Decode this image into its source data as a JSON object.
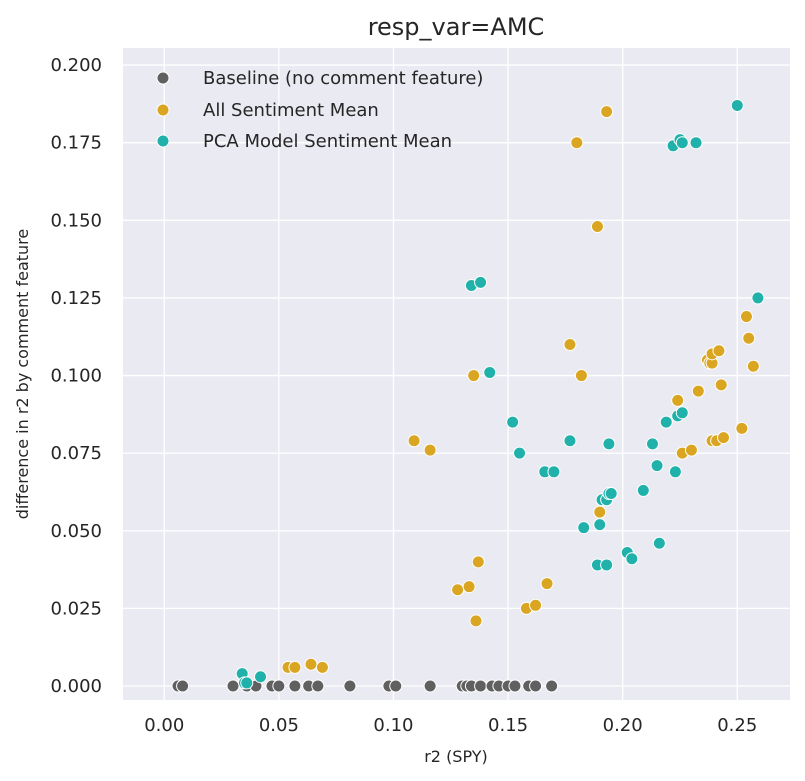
{
  "chart_data": {
    "type": "scatter",
    "title": "resp_var=AMC",
    "xlabel": "r2 (SPY)",
    "ylabel": "difference in r2 by comment feature",
    "xlim": [
      -0.018,
      0.273
    ],
    "ylim": [
      -0.0045,
      0.2055
    ],
    "xticks": [
      0.0,
      0.05,
      0.1,
      0.15,
      0.2,
      0.25
    ],
    "xtick_labels": [
      "0.00",
      "0.05",
      "0.10",
      "0.15",
      "0.20",
      "0.25"
    ],
    "yticks": [
      0.0,
      0.025,
      0.05,
      0.075,
      0.1,
      0.125,
      0.15,
      0.175,
      0.2
    ],
    "ytick_labels": [
      "0.000",
      "0.025",
      "0.050",
      "0.075",
      "0.100",
      "0.125",
      "0.150",
      "0.175",
      "0.200"
    ],
    "grid": true,
    "legend_position": "top-left",
    "background_color": "#eaeaf2",
    "series": [
      {
        "name": "Baseline (no comment feature)",
        "color": "#606060",
        "points": [
          [
            0.006,
            0.0
          ],
          [
            0.008,
            0.0
          ],
          [
            0.03,
            0.0
          ],
          [
            0.036,
            0.0
          ],
          [
            0.04,
            0.0
          ],
          [
            0.047,
            0.0
          ],
          [
            0.05,
            0.0
          ],
          [
            0.057,
            0.0
          ],
          [
            0.063,
            0.0
          ],
          [
            0.067,
            0.0
          ],
          [
            0.081,
            0.0
          ],
          [
            0.098,
            0.0
          ],
          [
            0.101,
            0.0
          ],
          [
            0.116,
            0.0
          ],
          [
            0.13,
            0.0
          ],
          [
            0.132,
            0.0
          ],
          [
            0.134,
            0.0
          ],
          [
            0.138,
            0.0
          ],
          [
            0.143,
            0.0
          ],
          [
            0.146,
            0.0
          ],
          [
            0.15,
            0.0
          ],
          [
            0.153,
            0.0
          ],
          [
            0.159,
            0.0
          ],
          [
            0.162,
            0.0
          ],
          [
            0.169,
            0.0
          ]
        ]
      },
      {
        "name": "All Sentiment Mean",
        "color": "#daa520",
        "points": [
          [
            0.054,
            0.006
          ],
          [
            0.057,
            0.006
          ],
          [
            0.064,
            0.007
          ],
          [
            0.069,
            0.006
          ],
          [
            0.109,
            0.079
          ],
          [
            0.116,
            0.076
          ],
          [
            0.128,
            0.031
          ],
          [
            0.133,
            0.032
          ],
          [
            0.135,
            0.1
          ],
          [
            0.136,
            0.021
          ],
          [
            0.137,
            0.04
          ],
          [
            0.158,
            0.025
          ],
          [
            0.162,
            0.026
          ],
          [
            0.167,
            0.033
          ],
          [
            0.177,
            0.11
          ],
          [
            0.18,
            0.175
          ],
          [
            0.182,
            0.1
          ],
          [
            0.189,
            0.148
          ],
          [
            0.19,
            0.056
          ],
          [
            0.193,
            0.185
          ],
          [
            0.224,
            0.092
          ],
          [
            0.226,
            0.075
          ],
          [
            0.23,
            0.076
          ],
          [
            0.233,
            0.095
          ],
          [
            0.237,
            0.105
          ],
          [
            0.238,
            0.104
          ],
          [
            0.239,
            0.104
          ],
          [
            0.239,
            0.107
          ],
          [
            0.239,
            0.079
          ],
          [
            0.241,
            0.079
          ],
          [
            0.242,
            0.108
          ],
          [
            0.243,
            0.097
          ],
          [
            0.244,
            0.08
          ],
          [
            0.252,
            0.083
          ],
          [
            0.254,
            0.119
          ],
          [
            0.255,
            0.112
          ],
          [
            0.257,
            0.103
          ]
        ]
      },
      {
        "name": "PCA Model Sentiment Mean",
        "color": "#20b2aa",
        "points": [
          [
            0.034,
            0.004
          ],
          [
            0.035,
            0.001
          ],
          [
            0.036,
            0.001
          ],
          [
            0.042,
            0.003
          ],
          [
            0.134,
            0.129
          ],
          [
            0.138,
            0.13
          ],
          [
            0.142,
            0.101
          ],
          [
            0.152,
            0.085
          ],
          [
            0.155,
            0.075
          ],
          [
            0.166,
            0.069
          ],
          [
            0.17,
            0.069
          ],
          [
            0.177,
            0.079
          ],
          [
            0.183,
            0.051
          ],
          [
            0.189,
            0.039
          ],
          [
            0.19,
            0.052
          ],
          [
            0.191,
            0.06
          ],
          [
            0.193,
            0.06
          ],
          [
            0.193,
            0.039
          ],
          [
            0.194,
            0.078
          ],
          [
            0.194,
            0.062
          ],
          [
            0.195,
            0.062
          ],
          [
            0.202,
            0.043
          ],
          [
            0.204,
            0.041
          ],
          [
            0.209,
            0.063
          ],
          [
            0.213,
            0.078
          ],
          [
            0.215,
            0.071
          ],
          [
            0.216,
            0.046
          ],
          [
            0.219,
            0.085
          ],
          [
            0.222,
            0.174
          ],
          [
            0.223,
            0.069
          ],
          [
            0.224,
            0.087
          ],
          [
            0.225,
            0.176
          ],
          [
            0.226,
            0.088
          ],
          [
            0.226,
            0.175
          ],
          [
            0.232,
            0.175
          ],
          [
            0.25,
            0.187
          ],
          [
            0.259,
            0.125
          ]
        ]
      }
    ]
  }
}
